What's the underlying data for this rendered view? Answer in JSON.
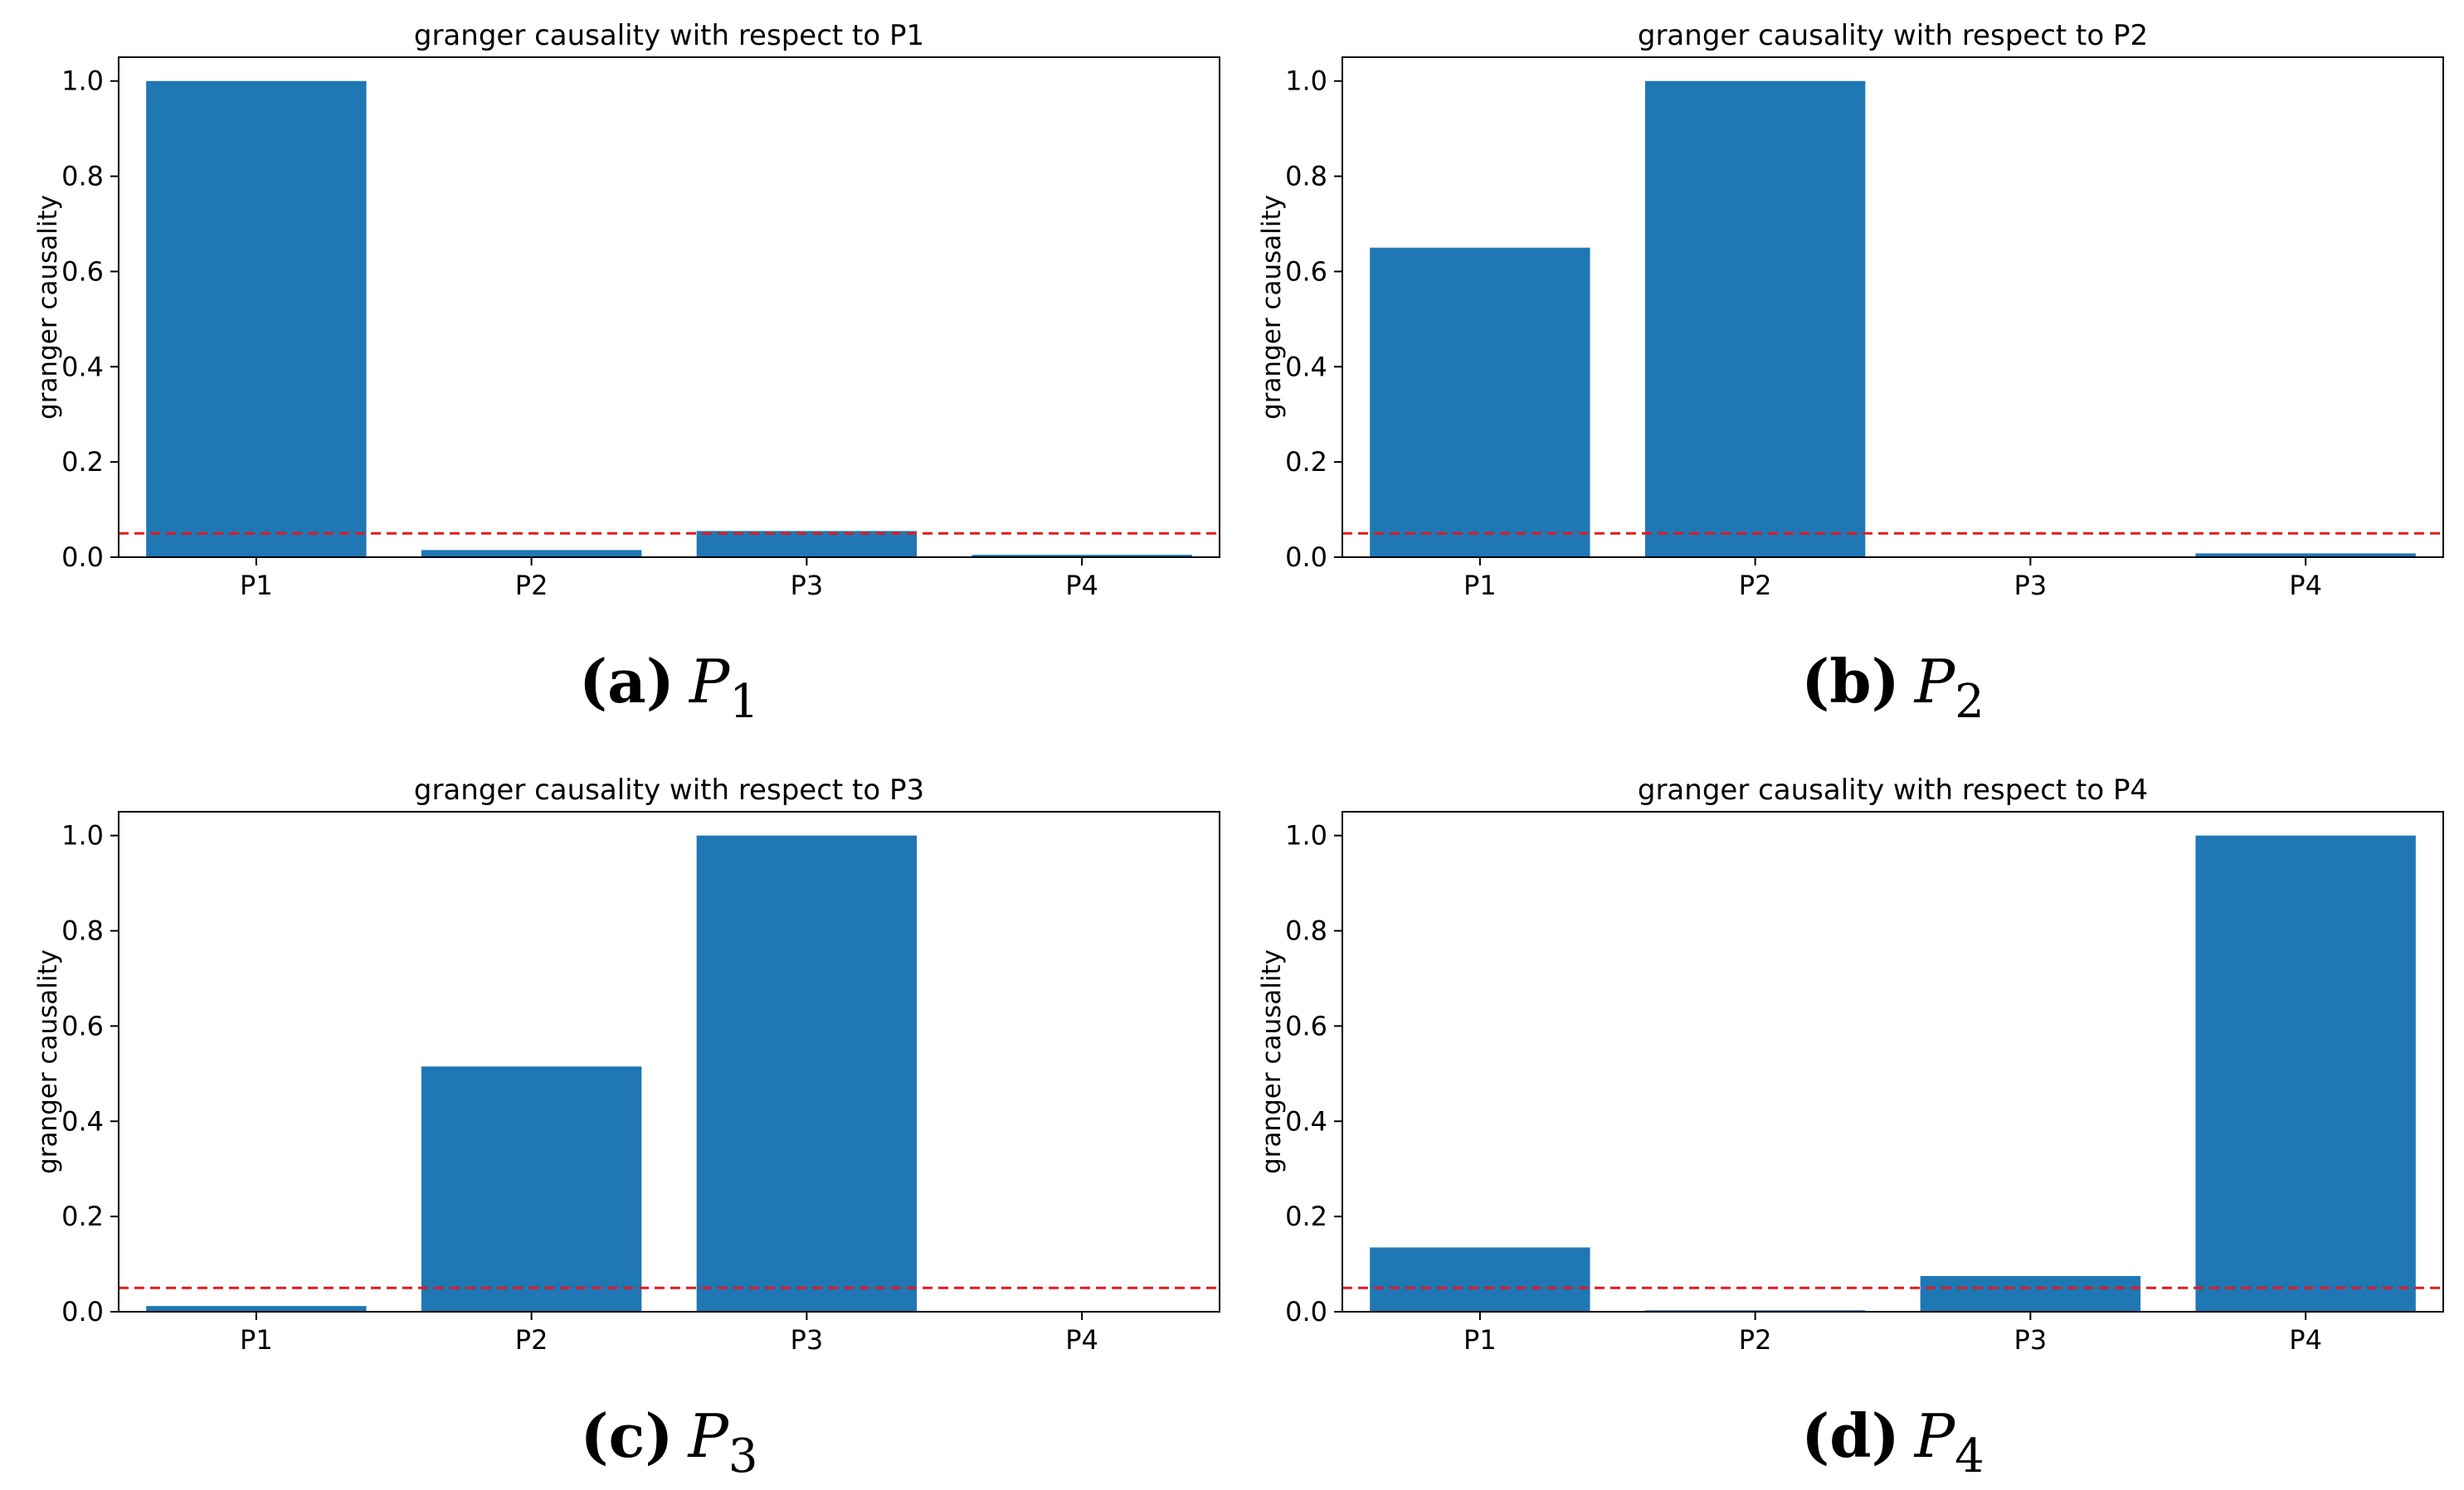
{
  "colors": {
    "bar": "#1f77b4",
    "threshold": "#e41a1c",
    "axis": "#000000"
  },
  "chart_data": [
    {
      "type": "bar",
      "title": "granger causality with respect to P1",
      "ylabel": "granger causality",
      "categories": [
        "P1",
        "P2",
        "P3",
        "P4"
      ],
      "values": [
        1.0,
        0.015,
        0.055,
        0.005
      ],
      "threshold": 0.05,
      "ylim": [
        0,
        1.05
      ],
      "yticks": [
        "0.0",
        "0.2",
        "0.4",
        "0.6",
        "0.8",
        "1.0"
      ],
      "caption": {
        "letter": "(a)",
        "var": "P",
        "sub": "1"
      }
    },
    {
      "type": "bar",
      "title": "granger causality with respect to P2",
      "ylabel": "granger causality",
      "categories": [
        "P1",
        "P2",
        "P3",
        "P4"
      ],
      "values": [
        0.65,
        1.0,
        0.0,
        0.008
      ],
      "threshold": 0.05,
      "ylim": [
        0,
        1.05
      ],
      "yticks": [
        "0.0",
        "0.2",
        "0.4",
        "0.6",
        "0.8",
        "1.0"
      ],
      "caption": {
        "letter": "(b)",
        "var": "P",
        "sub": "2"
      }
    },
    {
      "type": "bar",
      "title": "granger causality with respect to P3",
      "ylabel": "granger causality",
      "categories": [
        "P1",
        "P2",
        "P3",
        "P4"
      ],
      "values": [
        0.012,
        0.515,
        1.0,
        0.0
      ],
      "threshold": 0.05,
      "ylim": [
        0,
        1.05
      ],
      "yticks": [
        "0.0",
        "0.2",
        "0.4",
        "0.6",
        "0.8",
        "1.0"
      ],
      "caption": {
        "letter": "(c)",
        "var": "P",
        "sub": "3"
      }
    },
    {
      "type": "bar",
      "title": "granger causality with respect to P4",
      "ylabel": "granger causality",
      "categories": [
        "P1",
        "P2",
        "P3",
        "P4"
      ],
      "values": [
        0.135,
        0.003,
        0.075,
        1.0
      ],
      "threshold": 0.05,
      "ylim": [
        0,
        1.05
      ],
      "yticks": [
        "0.0",
        "0.2",
        "0.4",
        "0.6",
        "0.8",
        "1.0"
      ],
      "caption": {
        "letter": "(d)",
        "var": "P",
        "sub": "4"
      }
    }
  ]
}
